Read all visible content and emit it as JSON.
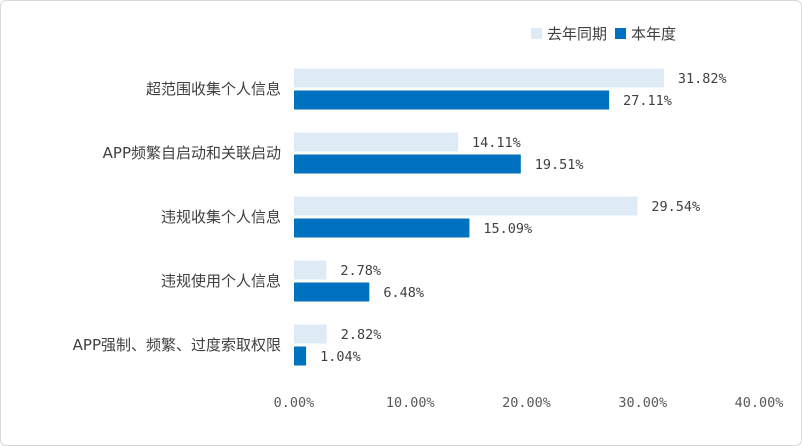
{
  "chart_data": {
    "type": "bar",
    "orientation": "horizontal",
    "categories": [
      "超范围收集个人信息",
      "APP频繁自启动和关联启动",
      "违规收集个人信息",
      "违规使用个人信息",
      "APP强制、频繁、过度索取权限"
    ],
    "series": [
      {
        "name": "去年同期",
        "color": "#deebf7",
        "values": [
          31.82,
          14.11,
          29.54,
          2.78,
          2.82
        ],
        "labels": [
          "31.82%",
          "14.11%",
          "29.54%",
          "2.78%",
          "2.82%"
        ]
      },
      {
        "name": "本年度",
        "color": "#0070c0",
        "values": [
          27.11,
          19.51,
          15.09,
          6.48,
          1.04
        ],
        "labels": [
          "27.11%",
          "19.51%",
          "15.09%",
          "6.48%",
          "1.04%"
        ]
      }
    ],
    "xlim": [
      0,
      40
    ],
    "xticks": [
      0,
      10,
      20,
      30,
      40
    ],
    "xtick_labels": [
      "0.00%",
      "10.00%",
      "20.00%",
      "30.00%",
      "40.00%"
    ],
    "title": "",
    "xlabel": "",
    "ylabel": "",
    "grid": false,
    "legend_position": "top-right"
  }
}
